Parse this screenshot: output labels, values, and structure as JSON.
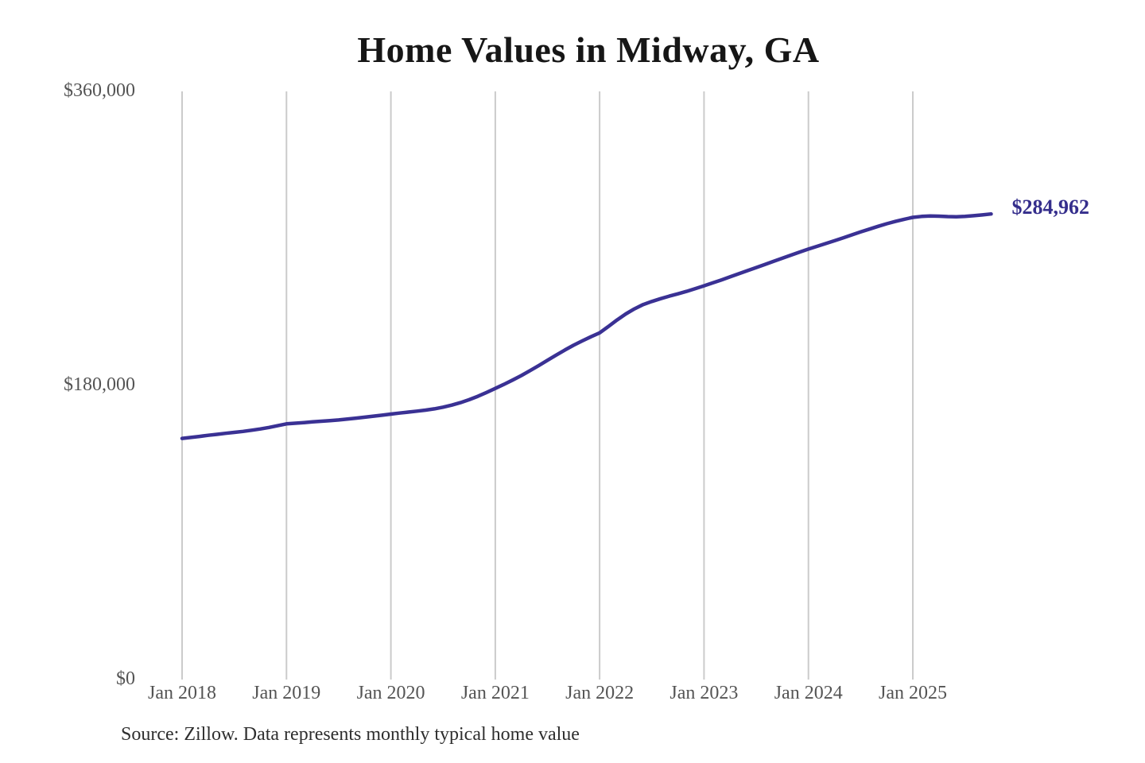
{
  "chart": {
    "title": "Home Values in Midway, GA",
    "source_note": "Source: Zillow. Data represents monthly typical home value"
  },
  "chart_data": {
    "type": "line",
    "title": "Home Values in Midway, GA",
    "series_name": "Monthly typical home value (USD)",
    "x_unit": "month",
    "x": [
      "2018-01",
      "2018-02",
      "2018-03",
      "2018-04",
      "2018-05",
      "2018-06",
      "2018-07",
      "2018-08",
      "2018-09",
      "2018-10",
      "2018-11",
      "2018-12",
      "2019-01",
      "2019-02",
      "2019-03",
      "2019-04",
      "2019-05",
      "2019-06",
      "2019-07",
      "2019-08",
      "2019-09",
      "2019-10",
      "2019-11",
      "2019-12",
      "2020-01",
      "2020-02",
      "2020-03",
      "2020-04",
      "2020-05",
      "2020-06",
      "2020-07",
      "2020-08",
      "2020-09",
      "2020-10",
      "2020-11",
      "2020-12",
      "2021-01",
      "2021-02",
      "2021-03",
      "2021-04",
      "2021-05",
      "2021-06",
      "2021-07",
      "2021-08",
      "2021-09",
      "2021-10",
      "2021-11",
      "2021-12",
      "2022-01",
      "2022-02",
      "2022-03",
      "2022-04",
      "2022-05",
      "2022-06",
      "2022-07",
      "2022-08",
      "2022-09",
      "2022-10",
      "2022-11",
      "2022-12",
      "2023-01",
      "2023-02",
      "2023-03",
      "2023-04",
      "2023-05",
      "2023-06",
      "2023-07",
      "2023-08",
      "2023-09",
      "2023-10",
      "2023-11",
      "2023-12",
      "2024-01",
      "2024-02",
      "2024-03",
      "2024-04",
      "2024-05",
      "2024-06",
      "2024-07",
      "2024-08",
      "2024-09",
      "2024-10",
      "2024-11",
      "2024-12",
      "2025-01",
      "2025-02",
      "2025-03",
      "2025-04",
      "2025-05",
      "2025-06",
      "2025-07",
      "2025-08",
      "2025-09",
      "2025-10"
    ],
    "values": [
      147600,
      148200,
      148800,
      149500,
      150100,
      150700,
      151300,
      151900,
      152600,
      153400,
      154300,
      155400,
      156500,
      156900,
      157300,
      157700,
      158100,
      158500,
      158900,
      159400,
      160000,
      160600,
      161200,
      161800,
      162500,
      163100,
      163700,
      164300,
      164900,
      165700,
      166700,
      168000,
      169500,
      171300,
      173400,
      175700,
      178200,
      180700,
      183300,
      186100,
      189100,
      192200,
      195400,
      198600,
      201700,
      204600,
      207300,
      209800,
      212200,
      216100,
      220100,
      223800,
      226900,
      229500,
      231400,
      233100,
      234700,
      236100,
      237600,
      239300,
      241000,
      242800,
      244600,
      246500,
      248400,
      250300,
      252200,
      254100,
      256000,
      257900,
      259800,
      261700,
      263500,
      265200,
      266900,
      268600,
      270400,
      272200,
      274000,
      275700,
      277400,
      279000,
      280400,
      281700,
      282900,
      283500,
      283700,
      283600,
      283400,
      283300,
      283500,
      283900,
      284400,
      284962
    ],
    "end_label": "$284,962",
    "end_value": 284962,
    "ylim": [
      0,
      360000
    ],
    "y_ticks": [
      {
        "value": 0,
        "label": "$0"
      },
      {
        "value": 180000,
        "label": "$180,000"
      },
      {
        "value": 360000,
        "label": "$360,000"
      }
    ],
    "x_ticks": [
      {
        "month_index": 0,
        "label": "Jan 2018"
      },
      {
        "month_index": 12,
        "label": "Jan 2019"
      },
      {
        "month_index": 24,
        "label": "Jan 2020"
      },
      {
        "month_index": 36,
        "label": "Jan 2021"
      },
      {
        "month_index": 48,
        "label": "Jan 2022"
      },
      {
        "month_index": 60,
        "label": "Jan 2023"
      },
      {
        "month_index": 72,
        "label": "Jan 2024"
      },
      {
        "month_index": 84,
        "label": "Jan 2025"
      }
    ],
    "grid": "vertical-only",
    "legend": "none",
    "line_color": "#3a3194",
    "end_label_color": "#352e8c",
    "grid_color": "#cbcbcb",
    "axis_text_color": "#545454",
    "title_color": "#161616",
    "source_color": "#2e2e2e",
    "background": "#ffffff"
  }
}
